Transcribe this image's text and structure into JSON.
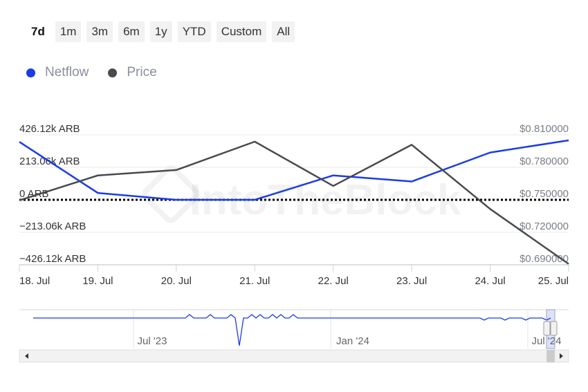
{
  "range_buttons": [
    {
      "label": "7d",
      "active": true
    },
    {
      "label": "1m",
      "active": false
    },
    {
      "label": "3m",
      "active": false
    },
    {
      "label": "6m",
      "active": false
    },
    {
      "label": "1y",
      "active": false
    },
    {
      "label": "YTD",
      "active": false
    },
    {
      "label": "Custom",
      "active": false
    },
    {
      "label": "All",
      "active": false
    }
  ],
  "legend": [
    {
      "label": "Netflow",
      "color": "#1a3ce8"
    },
    {
      "label": "Price",
      "color": "#474a4f"
    }
  ],
  "watermark": "IntoTheBlock",
  "chart_data": {
    "type": "line",
    "x": [
      "18. Jul",
      "19. Jul",
      "20. Jul",
      "21. Jul",
      "22. Jul",
      "23. Jul",
      "24. Jul",
      "25. Jul"
    ],
    "series": [
      {
        "name": "Netflow",
        "axis": "left",
        "color": "#1a3ce8",
        "values": [
          380000,
          45000,
          0,
          0,
          160000,
          120000,
          310000,
          390000
        ]
      },
      {
        "name": "Price",
        "axis": "right",
        "color": "#474a4f",
        "values": [
          0.7495,
          0.7725,
          0.7775,
          0.8037,
          0.7628,
          0.8008,
          0.7415,
          0.6908
        ]
      }
    ],
    "y_left": {
      "ticks": [
        426120,
        213060,
        0,
        -213060,
        -426120
      ],
      "tick_labels": [
        "426.12k ARB",
        "213.06k ARB",
        "0 ARB",
        "−213.06k ARB",
        "−426.12k ARB"
      ],
      "range": [
        -426120,
        426120
      ]
    },
    "y_right": {
      "ticks": [
        0.81,
        0.78,
        0.75,
        0.72,
        0.69
      ],
      "tick_labels": [
        "$0.810000",
        "$0.780000",
        "$0.750000",
        "$0.720000",
        "$0.690000"
      ],
      "range": [
        0.69,
        0.81
      ]
    },
    "zero_line": "dotted",
    "navigator": {
      "labels": [
        "Jul '23",
        "Jan '24",
        "Jul '24"
      ]
    }
  }
}
